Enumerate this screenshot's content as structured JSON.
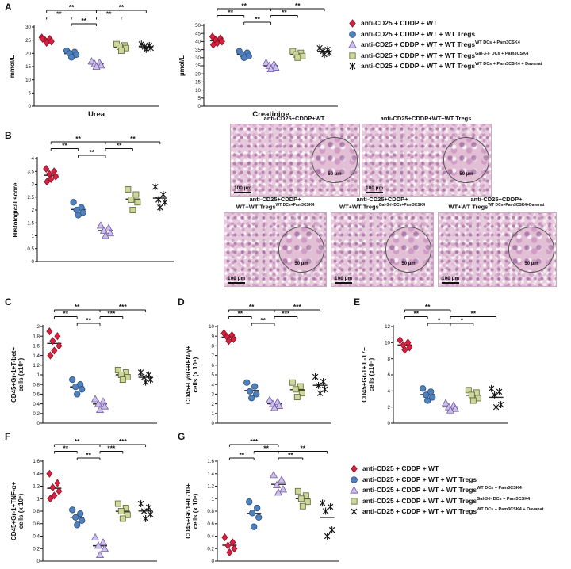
{
  "panels": {
    "a": "A",
    "b": "B",
    "c": "C",
    "d": "D",
    "e": "E",
    "f": "F",
    "g": "G"
  },
  "legend": {
    "items": [
      {
        "label": "anti-CD25 + CDDP + WT",
        "sup": ""
      },
      {
        "label": "anti-CD25 + CDDP + WT + WT Tregs",
        "sup": ""
      },
      {
        "label": "anti-CD25 + CDDP + WT + WT Tregs",
        "sup": "WT DCs + Pam3CSK4"
      },
      {
        "label": "anti-CD25 + CDDP + WT + WT Tregs",
        "sup": "Gal-3-/- DCs + Pam3CSK4"
      },
      {
        "label": "anti-CD25 + CDDP + WT + WT Tregs",
        "sup": "WT DCs + Pam3CSK4 + Davanat"
      }
    ]
  },
  "groups": [
    {
      "name": "anti-CD25 + CDDP + WT",
      "shape": "diamond",
      "fill": "#d6213f",
      "stroke": "#8e1026"
    },
    {
      "name": "anti-CD25 + CDDP + WT + WT Tregs",
      "shape": "circle",
      "fill": "#4f81bd",
      "stroke": "#2d4f80"
    },
    {
      "name": "anti-CD25 + CDDP + WT + WT Tregs (WT DCs + Pam3CSK4)",
      "shape": "triangle",
      "fill": "#cfc0e8",
      "stroke": "#6f5ba8"
    },
    {
      "name": "anti-CD25 + CDDP + WT + WT Tregs (Gal-3-/- DCs + Pam3CSK4)",
      "shape": "square",
      "fill": "#ccd69d",
      "stroke": "#5c662f"
    },
    {
      "name": "anti-CD25 + CDDP + WT + WT Tregs (WT DCs + Pam3CSK4 + Davanat)",
      "shape": "star",
      "fill": "none",
      "stroke": "#111111"
    }
  ],
  "hist": {
    "images": [
      {
        "title": "anti-CD25+CDDP+WT",
        "title2": "",
        "sup": "",
        "scale_bar": "100 µm",
        "inset_label": "50 µm"
      },
      {
        "title": "anti-CD25+CDDP+WT+WT Tregs",
        "title2": "",
        "sup": "",
        "scale_bar": "100 µm",
        "inset_label": "50 µm"
      },
      {
        "title": "anti-CD25+CDDP+",
        "title2": "WT+WT Tregs",
        "sup": "WT DCs+Pam3CSK4",
        "scale_bar": "100 µm",
        "inset_label": "50 µm"
      },
      {
        "title": "anti-CD25+CDDP+",
        "title2": "WT+WT Tregs",
        "sup": "Gal-3-/- DCs+Pam3CSK4",
        "scale_bar": "100 µm",
        "inset_label": "50 µm"
      },
      {
        "title": "anti-CD25+CDDP+",
        "title2": "WT+WT Tregs",
        "sup": "WT DCs+Pam3CSK4+Davanat",
        "scale_bar": "100 µm",
        "inset_label": "50 µm"
      }
    ]
  },
  "chart_data": [
    {
      "id": "urea",
      "type": "scatter",
      "ylabel": "mmol/L",
      "xlabel": "Urea",
      "ylim": [
        0,
        30
      ],
      "yticks": [
        0,
        5,
        10,
        15,
        20,
        25,
        30
      ],
      "series": [
        {
          "name": "anti-CD25 + CDDP + WT",
          "values": [
            26,
            25.5,
            25,
            24.5,
            24,
            25.5
          ]
        },
        {
          "name": "anti-CD25 + CDDP + WT + WT Tregs",
          "values": [
            21,
            20.5,
            20,
            19.5,
            18.5
          ]
        },
        {
          "name": "anti-CD25 + CDDP + WT + WT Tregs (WT DCs+Pam3CSK4)",
          "values": [
            17,
            16.5,
            16,
            15.5,
            15
          ]
        },
        {
          "name": "anti-CD25 + CDDP + WT + WT Tregs (Gal-3-/- DCs+Pam3CSK4)",
          "values": [
            23.5,
            23,
            22.5,
            22,
            21
          ]
        },
        {
          "name": "anti-CD25 + CDDP + WT + WT Tregs (WT DCs+Pam3CSK4+Davanat)",
          "values": [
            23.5,
            23,
            22.5,
            22,
            21.5
          ]
        }
      ],
      "brackets": [
        {
          "from": 1,
          "to": 2,
          "label": "**",
          "level": 1
        },
        {
          "from": 0,
          "to": 1,
          "label": "**",
          "level": 2
        },
        {
          "from": 0,
          "to": 2,
          "label": "**",
          "level": 3
        },
        {
          "from": 2,
          "to": 3,
          "label": "**",
          "level": 2
        },
        {
          "from": 2,
          "to": 4,
          "label": "**",
          "level": 3
        }
      ]
    },
    {
      "id": "creatinine",
      "type": "scatter",
      "ylabel": "µmol/L",
      "xlabel": "Creatinine",
      "ylim": [
        0,
        50
      ],
      "yticks": [
        0,
        5,
        10,
        15,
        20,
        25,
        30,
        35,
        40,
        45,
        50
      ],
      "series": [
        {
          "name": "anti-CD25 + CDDP + WT",
          "values": [
            43,
            42,
            41,
            40,
            39,
            38
          ]
        },
        {
          "name": "anti-CD25 + CDDP + WT + WT Tregs",
          "values": [
            34,
            33,
            32,
            31,
            30
          ]
        },
        {
          "name": "anti-CD25 + CDDP + WT + WT Tregs (WT DCs+Pam3CSK4)",
          "values": [
            27,
            26,
            25,
            24,
            23
          ]
        },
        {
          "name": "anti-CD25 + CDDP + WT + WT Tregs (Gal-3-/- DCs+Pam3CSK4)",
          "values": [
            34,
            33,
            32,
            31,
            30
          ]
        },
        {
          "name": "anti-CD25 + CDDP + WT + WT Tregs (WT DCs+Pam3CSK4+Davanat)",
          "values": [
            36,
            35,
            34,
            33,
            32
          ]
        }
      ],
      "brackets": [
        {
          "from": 1,
          "to": 2,
          "label": "**",
          "level": 1
        },
        {
          "from": 0,
          "to": 1,
          "label": "**",
          "level": 2
        },
        {
          "from": 0,
          "to": 2,
          "label": "**",
          "level": 3
        },
        {
          "from": 2,
          "to": 3,
          "label": "**",
          "level": 2
        },
        {
          "from": 2,
          "to": 4,
          "label": "**",
          "level": 3
        }
      ]
    },
    {
      "id": "histology",
      "type": "scatter",
      "ylabel": "Histological score",
      "xlabel": "",
      "ylim": [
        0,
        4
      ],
      "yticks": [
        0,
        0.5,
        1,
        1.5,
        2,
        2.5,
        3,
        3.5,
        4
      ],
      "series": [
        {
          "name": "anti-CD25 + CDDP + WT",
          "values": [
            3.6,
            3.5,
            3.4,
            3.3,
            3.2,
            3.1
          ]
        },
        {
          "name": "anti-CD25 + CDDP + WT + WT Tregs",
          "values": [
            2.3,
            2.1,
            2.0,
            1.9,
            1.8
          ]
        },
        {
          "name": "anti-CD25 + CDDP + WT + WT Tregs (WT DCs+Pam3CSK4)",
          "values": [
            1.4,
            1.3,
            1.2,
            1.1,
            1.0
          ]
        },
        {
          "name": "anti-CD25 + CDDP + WT + WT Tregs (Gal-3-/- DCs+Pam3CSK4)",
          "values": [
            2.8,
            2.6,
            2.4,
            2.3,
            2.0
          ]
        },
        {
          "name": "anti-CD25 + CDDP + WT + WT Tregs (WT DCs+Pam3CSK4+Davanat)",
          "values": [
            2.9,
            2.6,
            2.4,
            2.3,
            2.1
          ]
        }
      ],
      "brackets": [
        {
          "from": 1,
          "to": 2,
          "label": "**",
          "level": 1
        },
        {
          "from": 0,
          "to": 1,
          "label": "**",
          "level": 2
        },
        {
          "from": 0,
          "to": 2,
          "label": "**",
          "level": 3
        },
        {
          "from": 2,
          "to": 3,
          "label": "**",
          "level": 2
        },
        {
          "from": 2,
          "to": 4,
          "label": "**",
          "level": 3
        }
      ]
    },
    {
      "id": "panelC",
      "type": "scatter",
      "ylabel": "CD45+Gr-1+T-bet+\ncells (x10⁵)",
      "xlabel": "",
      "ylim": [
        0,
        2
      ],
      "yticks": [
        0,
        0.2,
        0.4,
        0.6,
        0.8,
        1,
        1.2,
        1.4,
        1.6,
        1.8,
        2
      ],
      "series": [
        {
          "name": "anti-CD25 + CDDP + WT",
          "values": [
            1.9,
            1.8,
            1.7,
            1.6,
            1.5,
            1.4
          ]
        },
        {
          "name": "anti-CD25 + CDDP + WT + WT Tregs",
          "values": [
            0.9,
            0.8,
            0.75,
            0.7,
            0.6
          ]
        },
        {
          "name": "anti-CD25 + CDDP + WT + WT Tregs (WT DCs+Pam3CSK4)",
          "values": [
            0.5,
            0.45,
            0.4,
            0.35,
            0.28
          ]
        },
        {
          "name": "anti-CD25 + CDDP + WT + WT Tregs (Gal-3-/- DCs+Pam3CSK4)",
          "values": [
            1.1,
            1.05,
            1.0,
            0.95,
            0.9
          ]
        },
        {
          "name": "anti-CD25 + CDDP + WT + WT Tregs (WT DCs+Pam3CSK4+Davanat)",
          "values": [
            1.05,
            1.0,
            0.95,
            0.9,
            0.85
          ]
        }
      ],
      "brackets": [
        {
          "from": 1,
          "to": 2,
          "label": "**",
          "level": 1
        },
        {
          "from": 0,
          "to": 1,
          "label": "**",
          "level": 2
        },
        {
          "from": 0,
          "to": 2,
          "label": "**",
          "level": 3
        },
        {
          "from": 2,
          "to": 3,
          "label": "***",
          "level": 2
        },
        {
          "from": 2,
          "to": 4,
          "label": "***",
          "level": 3
        }
      ]
    },
    {
      "id": "panelD",
      "type": "scatter",
      "ylabel": "CD45+Ly6G+IFN-γ+\ncells (x 10⁴)",
      "xlabel": "",
      "ylim": [
        0,
        10
      ],
      "yticks": [
        0,
        1,
        2,
        3,
        4,
        5,
        6,
        7,
        8,
        9,
        10
      ],
      "series": [
        {
          "name": "anti-CD25 + CDDP + WT",
          "values": [
            9.3,
            9.1,
            8.9,
            8.7,
            8.5
          ]
        },
        {
          "name": "anti-CD25 + CDDP + WT + WT Tregs",
          "values": [
            4.2,
            3.8,
            3.3,
            3.0,
            2.6
          ]
        },
        {
          "name": "anti-CD25 + CDDP + WT + WT Tregs (WT DCs+Pam3CSK4)",
          "values": [
            2.4,
            2.2,
            2.0,
            1.8,
            1.6
          ]
        },
        {
          "name": "anti-CD25 + CDDP + WT + WT Tregs (Gal-3-/- DCs+Pam3CSK4)",
          "values": [
            4.2,
            3.8,
            3.5,
            3.1,
            2.7
          ]
        },
        {
          "name": "anti-CD25 + CDDP + WT + WT Tregs (WT DCs+Pam3CSK4+Davanat)",
          "values": [
            4.8,
            4.3,
            3.9,
            3.5,
            3.1
          ]
        }
      ],
      "brackets": [
        {
          "from": 1,
          "to": 2,
          "label": "**",
          "level": 1
        },
        {
          "from": 0,
          "to": 1,
          "label": "**",
          "level": 2
        },
        {
          "from": 0,
          "to": 2,
          "label": "**",
          "level": 3
        },
        {
          "from": 2,
          "to": 3,
          "label": "***",
          "level": 2
        },
        {
          "from": 2,
          "to": 4,
          "label": "***",
          "level": 3
        }
      ]
    },
    {
      "id": "panelE",
      "type": "scatter",
      "ylabel": "CD45+Gr-1+IL-17+\ncells (x10⁴)",
      "xlabel": "",
      "ylim": [
        0,
        12
      ],
      "yticks": [
        0,
        2,
        4,
        6,
        8,
        10,
        12
      ],
      "series": [
        {
          "name": "anti-CD25 + CDDP + WT",
          "values": [
            10.3,
            10,
            9.7,
            9.4,
            9.1
          ]
        },
        {
          "name": "anti-CD25 + CDDP + WT + WT Tregs",
          "values": [
            4.3,
            3.9,
            3.5,
            3.2,
            2.8
          ]
        },
        {
          "name": "anti-CD25 + CDDP + WT + WT Tregs (WT DCs+Pam3CSK4)",
          "values": [
            2.5,
            2.2,
            2.0,
            1.8,
            1.6
          ]
        },
        {
          "name": "anti-CD25 + CDDP + WT + WT Tregs (Gal-3-/- DCs+Pam3CSK4)",
          "values": [
            4.1,
            3.8,
            3.5,
            3.1,
            2.8
          ]
        },
        {
          "name": "anti-CD25 + CDDP + WT + WT Tregs (WT DCs+Pam3CSK4+Davanat)",
          "values": [
            4.3,
            3.9,
            3.5,
            2.3,
            2.0
          ]
        }
      ],
      "brackets": [
        {
          "from": 1,
          "to": 2,
          "label": "*",
          "level": 1
        },
        {
          "from": 0,
          "to": 1,
          "label": "**",
          "level": 2
        },
        {
          "from": 0,
          "to": 2,
          "label": "**",
          "level": 3
        },
        {
          "from": 2,
          "to": 3,
          "label": "*",
          "level": 1
        },
        {
          "from": 2,
          "to": 4,
          "label": "**",
          "level": 2
        }
      ]
    },
    {
      "id": "panelF",
      "type": "scatter",
      "ylabel": "CD45+Gr-1+TNF-α+\ncells (x 10⁶)",
      "xlabel": "",
      "ylim": [
        0,
        1.6
      ],
      "yticks": [
        0,
        0.2,
        0.4,
        0.6,
        0.8,
        1,
        1.2,
        1.4,
        1.6
      ],
      "series": [
        {
          "name": "anti-CD25 + CDDP + WT",
          "values": [
            1.4,
            1.25,
            1.18,
            1.12,
            1.05,
            1.0
          ]
        },
        {
          "name": "anti-CD25 + CDDP + WT + WT Tregs",
          "values": [
            0.82,
            0.76,
            0.7,
            0.65,
            0.58
          ]
        },
        {
          "name": "anti-CD25 + CDDP + WT + WT Tregs (WT DCs+Pam3CSK4)",
          "values": [
            0.38,
            0.3,
            0.25,
            0.2,
            0.1
          ]
        },
        {
          "name": "anti-CD25 + CDDP + WT + WT Tregs (Gal-3-/- DCs+Pam3CSK4)",
          "values": [
            0.92,
            0.85,
            0.8,
            0.74,
            0.68
          ]
        },
        {
          "name": "anti-CD25 + CDDP + WT + WT Tregs (WT DCs+Pam3CSK4+Davanat)",
          "values": [
            0.92,
            0.86,
            0.8,
            0.75,
            0.68
          ]
        }
      ],
      "brackets": [
        {
          "from": 1,
          "to": 2,
          "label": "**",
          "level": 1
        },
        {
          "from": 0,
          "to": 1,
          "label": "**",
          "level": 2
        },
        {
          "from": 0,
          "to": 2,
          "label": "**",
          "level": 3
        },
        {
          "from": 2,
          "to": 3,
          "label": "***",
          "level": 2
        },
        {
          "from": 2,
          "to": 4,
          "label": "***",
          "level": 3
        }
      ]
    },
    {
      "id": "panelG",
      "type": "scatter",
      "ylabel": "CD45+Gr-1+IL-10+\ncells (x 10⁶)",
      "xlabel": "",
      "ylim": [
        0,
        1.6
      ],
      "yticks": [
        0,
        0.2,
        0.4,
        0.6,
        0.8,
        1,
        1.2,
        1.4,
        1.6
      ],
      "series": [
        {
          "name": "anti-CD25 + CDDP + WT",
          "values": [
            0.38,
            0.3,
            0.25,
            0.2,
            0.14
          ]
        },
        {
          "name": "anti-CD25 + CDDP + WT + WT Tregs",
          "values": [
            0.95,
            0.85,
            0.77,
            0.7,
            0.55
          ]
        },
        {
          "name": "anti-CD25 + CDDP + WT + WT Tregs (WT DCs+Pam3CSK4)",
          "values": [
            1.38,
            1.3,
            1.22,
            1.15,
            1.1
          ]
        },
        {
          "name": "anti-CD25 + CDDP + WT + WT Tregs (Gal-3-/- DCs+Pam3CSK4)",
          "values": [
            1.12,
            1.05,
            1.0,
            0.95,
            0.88
          ]
        },
        {
          "name": "anti-CD25 + CDDP + WT + WT Tregs (WT DCs+Pam3CSK4+Davanat)",
          "values": [
            0.93,
            0.87,
            0.8,
            0.5,
            0.4
          ]
        }
      ],
      "brackets": [
        {
          "from": 0,
          "to": 1,
          "label": "**",
          "level": 1
        },
        {
          "from": 1,
          "to": 2,
          "label": "**",
          "level": 2
        },
        {
          "from": 0,
          "to": 2,
          "label": "***",
          "level": 3
        },
        {
          "from": 2,
          "to": 3,
          "label": "**",
          "level": 1
        },
        {
          "from": 2,
          "to": 4,
          "label": "**",
          "level": 2
        }
      ]
    }
  ]
}
